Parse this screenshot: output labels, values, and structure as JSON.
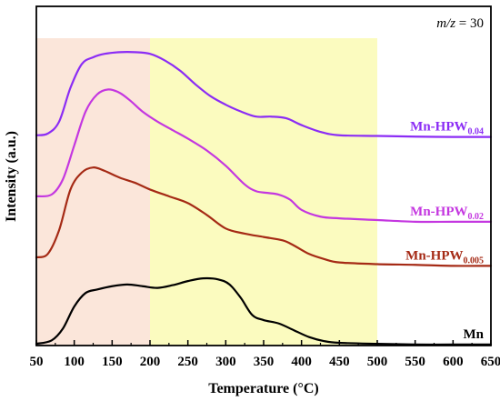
{
  "chart_data": {
    "type": "line",
    "xlabel": "Temperature (°C)",
    "ylabel": "Intensity (a.u.)",
    "xlim": [
      50,
      650
    ],
    "ylim": [
      0,
      100
    ],
    "xticks": [
      "50",
      "100",
      "150",
      "200",
      "250",
      "300",
      "350",
      "400",
      "450",
      "500",
      "550",
      "600",
      "650"
    ],
    "annotation": {
      "italic": "m/z",
      "rest": " = 30"
    },
    "grid": false,
    "y_ticks_shown": false,
    "regions": [
      {
        "from": 50,
        "to": 200,
        "color": "#fbe6da"
      },
      {
        "from": 200,
        "to": 500,
        "color": "#fbfbbf"
      }
    ],
    "series": [
      {
        "name": "Mn",
        "main": "Mn",
        "sub": "",
        "color": "#000000",
        "x": [
          50,
          70,
          85,
          100,
          115,
          130,
          150,
          170,
          190,
          210,
          230,
          250,
          270,
          290,
          305,
          320,
          335,
          350,
          370,
          390,
          410,
          430,
          450,
          500,
          550,
          600,
          650
        ],
        "y": [
          0.5,
          1.5,
          5,
          11.5,
          15.5,
          16.5,
          17.5,
          18,
          17.5,
          17,
          17.8,
          19,
          19.8,
          19.5,
          18,
          14,
          9,
          7.5,
          6.5,
          4.5,
          2.5,
          1.3,
          0.8,
          0.5,
          0.3,
          0.3,
          0.3
        ]
      },
      {
        "name": "Mn-HPW0.005",
        "main": "Mn-HPW",
        "sub": "0.005",
        "color": "#a52a15",
        "x": [
          50,
          65,
          80,
          95,
          110,
          125,
          140,
          160,
          180,
          200,
          225,
          250,
          275,
          300,
          325,
          350,
          375,
          390,
          410,
          430,
          450,
          500,
          550,
          600,
          650
        ],
        "y": [
          26,
          27,
          34,
          46,
          51,
          52.5,
          51.5,
          49.5,
          48,
          46,
          44,
          42,
          38.5,
          34.5,
          33,
          32,
          31,
          29.5,
          27,
          25.5,
          24.5,
          24,
          23.8,
          23.5,
          23.5
        ]
      },
      {
        "name": "Mn-HPW0.02",
        "main": "Mn-HPW",
        "sub": "0.02",
        "color": "#c437e0",
        "x": [
          50,
          70,
          85,
          100,
          115,
          130,
          145,
          160,
          175,
          190,
          210,
          230,
          250,
          275,
          300,
          325,
          340,
          355,
          370,
          385,
          400,
          425,
          450,
          500,
          550,
          600,
          650
        ],
        "y": [
          44,
          44.5,
          49,
          59,
          69,
          74,
          75.5,
          74.5,
          72,
          69,
          66,
          63.5,
          61,
          57.5,
          53,
          47.5,
          45.5,
          45,
          44.5,
          43,
          40,
          38,
          37.5,
          37,
          36.5,
          36.5,
          36.5
        ]
      },
      {
        "name": "Mn-HPW0.04",
        "main": "Mn-HPW",
        "sub": "0.04",
        "color": "#8b2cf5",
        "x": [
          50,
          65,
          80,
          95,
          110,
          125,
          140,
          160,
          180,
          200,
          220,
          240,
          260,
          280,
          300,
          320,
          340,
          360,
          380,
          400,
          425,
          450,
          500,
          550,
          600,
          650
        ],
        "y": [
          62,
          62.5,
          66,
          76,
          83,
          85,
          86,
          86.5,
          86.5,
          86,
          84,
          81,
          77,
          73.5,
          71,
          69,
          67.5,
          67.5,
          67,
          65,
          63,
          62,
          61.8,
          61.6,
          61.5,
          61.5
        ]
      }
    ]
  }
}
